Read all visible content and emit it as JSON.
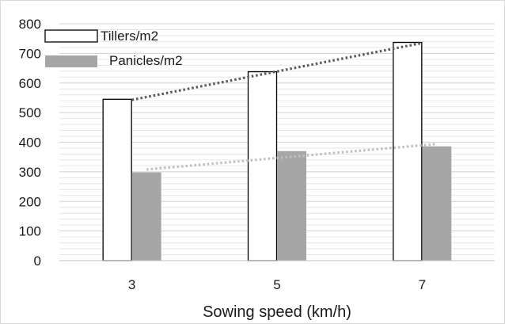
{
  "chart_data": {
    "type": "bar",
    "categories": [
      "3",
      "5",
      "7"
    ],
    "xlabel": "Sowing speed (km/h)",
    "ylabel": "",
    "title": "",
    "ylim": [
      0,
      800
    ],
    "yticks": [
      "0",
      "100",
      "200",
      "300",
      "400",
      "500",
      "600",
      "700",
      "800"
    ],
    "grid": true,
    "legend_position": "top-left",
    "series": [
      {
        "name": "Tillers/m2",
        "values": [
          545,
          638,
          737
        ],
        "fill": "#ffffff",
        "stroke": "#000000"
      },
      {
        "name": "Panicles/m2",
        "values": [
          298,
          370,
          386
        ],
        "fill": "#a6a6a6",
        "stroke": "none"
      }
    ],
    "trendlines": [
      {
        "series": "Tillers/m2",
        "from": 543,
        "to": 735,
        "color": "#595959"
      },
      {
        "series": "Panicles/m2",
        "from": 308,
        "to": 394,
        "color": "#bfbfbf"
      }
    ]
  }
}
